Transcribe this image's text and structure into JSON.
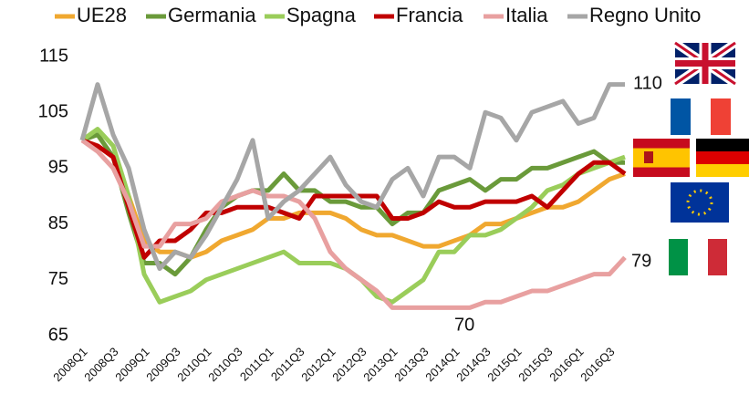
{
  "chart_data": {
    "type": "line",
    "categories": [
      "2008Q1",
      null,
      "2008Q3",
      null,
      "2009Q1",
      null,
      "2009Q3",
      null,
      "2010Q1",
      null,
      "2010Q3",
      null,
      "2011Q1",
      null,
      "2011Q3",
      null,
      "2012Q1",
      null,
      "2012Q3",
      null,
      "2013Q1",
      null,
      "2013Q3",
      null,
      "2014Q1",
      null,
      "2014Q3",
      null,
      "2015Q1",
      null,
      "2015Q3",
      null,
      "2016Q1",
      null,
      "2016Q3",
      null
    ],
    "series": [
      {
        "name": "UE28",
        "color": "#f0a830",
        "values": [
          100,
          99,
          97,
          90,
          82,
          80,
          80,
          79,
          80,
          82,
          83,
          84,
          86,
          86,
          87,
          87,
          87,
          86,
          84,
          83,
          83,
          82,
          81,
          81,
          82,
          83,
          85,
          85,
          86,
          87,
          88,
          88,
          89,
          91,
          93,
          94
        ]
      },
      {
        "name": "Germania",
        "color": "#6a9a3a",
        "values": [
          100,
          101,
          97,
          87,
          78,
          78,
          76,
          79,
          84,
          88,
          90,
          91,
          91,
          94,
          91,
          91,
          89,
          89,
          88,
          88,
          85,
          87,
          87,
          91,
          92,
          93,
          91,
          93,
          93,
          95,
          95,
          96,
          97,
          98,
          96,
          96
        ]
      },
      {
        "name": "Spagna",
        "color": "#9acd5a",
        "values": [
          100,
          102,
          99,
          90,
          76,
          71,
          72,
          73,
          75,
          76,
          77,
          78,
          79,
          80,
          78,
          78,
          78,
          77,
          75,
          72,
          71,
          73,
          75,
          80,
          80,
          83,
          83,
          84,
          86,
          88,
          91,
          92,
          94,
          95,
          96,
          97
        ]
      },
      {
        "name": "Francia",
        "color": "#c00000",
        "values": [
          100,
          99,
          97,
          88,
          79,
          82,
          82,
          84,
          87,
          87,
          88,
          88,
          88,
          87,
          86,
          90,
          90,
          90,
          90,
          90,
          86,
          86,
          87,
          89,
          88,
          88,
          89,
          89,
          89,
          90,
          88,
          91,
          94,
          96,
          96,
          94
        ]
      },
      {
        "name": "Italia",
        "color": "#e8a0a0",
        "values": [
          100,
          98,
          95,
          89,
          81,
          81,
          85,
          85,
          86,
          89,
          90,
          91,
          90,
          90,
          89,
          86,
          80,
          77,
          75,
          73,
          70,
          70,
          70,
          70,
          70,
          70,
          71,
          71,
          72,
          73,
          73,
          74,
          75,
          76,
          76,
          79
        ]
      },
      {
        "name": "Regno Unito",
        "color": "#a6a6a6",
        "values": [
          100,
          110,
          101,
          95,
          84,
          77,
          80,
          79,
          83,
          88,
          93,
          100,
          86,
          89,
          91,
          94,
          97,
          92,
          89,
          88,
          93,
          95,
          90,
          97,
          97,
          95,
          105,
          104,
          100,
          105,
          106,
          107,
          103,
          104,
          110,
          110
        ]
      }
    ],
    "ylim": [
      65,
      115
    ],
    "yticks": [
      65,
      75,
      85,
      95,
      105,
      115
    ],
    "annotations": [
      "110",
      "79",
      "70"
    ]
  }
}
